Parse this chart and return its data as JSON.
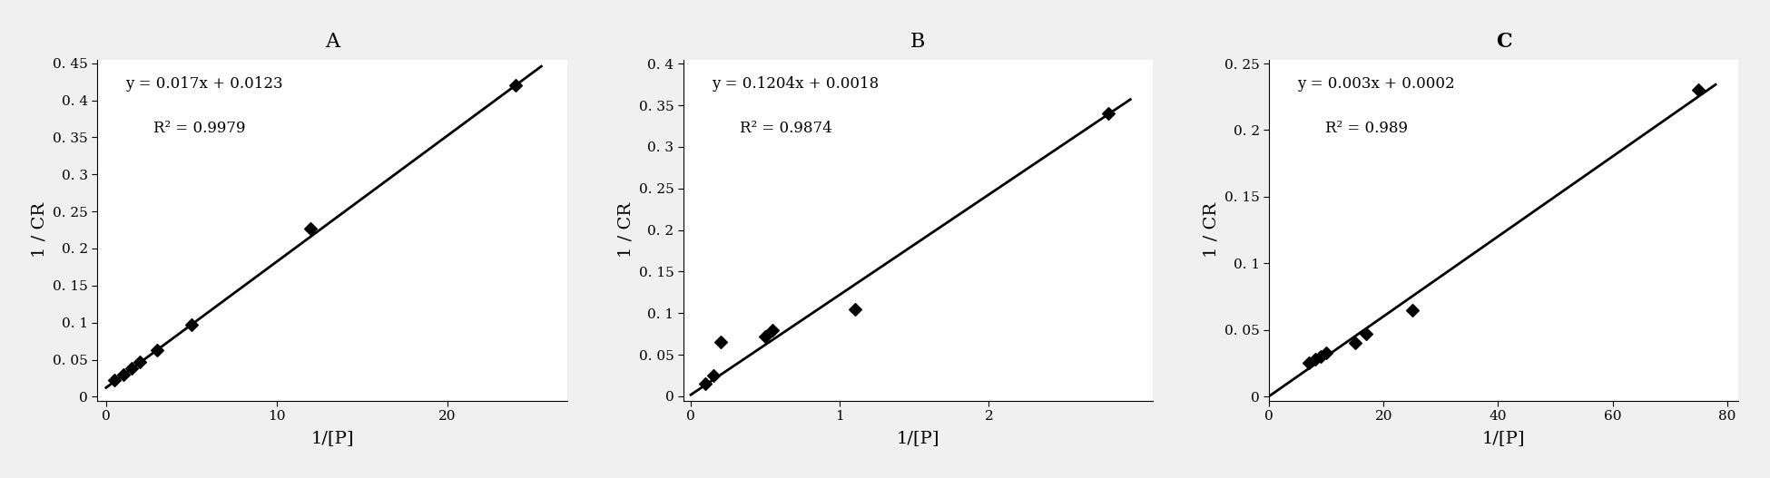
{
  "panels": [
    {
      "title": "A",
      "title_bold": false,
      "equation": "y = 0.017x + 0.0123",
      "r2": "R² = 0.9979",
      "slope": 0.017,
      "intercept": 0.0123,
      "data_x": [
        0.5,
        1.0,
        1.5,
        2.0,
        3.0,
        5.0,
        12.0,
        24.0
      ],
      "data_y": [
        0.022,
        0.03,
        0.038,
        0.047,
        0.063,
        0.097,
        0.227,
        0.42
      ],
      "xlim": [
        -0.5,
        27
      ],
      "ylim": [
        -0.005,
        0.455
      ],
      "xticks": [
        0,
        10,
        20
      ],
      "xtick_labels": [
        "0",
        "10",
        "20"
      ],
      "yticks": [
        0,
        0.05,
        0.1,
        0.15,
        0.2,
        0.25,
        0.3,
        0.35,
        0.4,
        0.45
      ],
      "ytick_labels": [
        "0",
        "0. 05",
        "0. 1",
        "0. 15",
        "0. 2",
        "0. 25",
        "0. 3",
        "0. 35",
        "0. 4",
        "0. 45"
      ],
      "xlabel": "1/[P]",
      "ylabel": "1 / CR",
      "line_x_start": 0,
      "line_x_end": 25.5
    },
    {
      "title": "B",
      "title_bold": false,
      "equation": "y = 0.1204x + 0.0018",
      "r2": "R² = 0.9874",
      "slope": 0.1204,
      "intercept": 0.0018,
      "data_x": [
        0.1,
        0.15,
        0.2,
        0.5,
        0.55,
        1.1,
        2.8
      ],
      "data_y": [
        0.015,
        0.025,
        0.065,
        0.072,
        0.08,
        0.105,
        0.34
      ],
      "xlim": [
        -0.05,
        3.1
      ],
      "ylim": [
        -0.005,
        0.405
      ],
      "xticks": [
        0,
        1,
        2
      ],
      "xtick_labels": [
        "0",
        "1",
        "2"
      ],
      "yticks": [
        0,
        0.05,
        0.1,
        0.15,
        0.2,
        0.25,
        0.3,
        0.35,
        0.4
      ],
      "ytick_labels": [
        "0",
        "0. 05",
        "0. 1",
        "0. 15",
        "0. 2",
        "0. 25",
        "0. 3",
        "0. 35",
        "0. 4"
      ],
      "xlabel": "1/[P]",
      "ylabel": "1 / CR",
      "line_x_start": 0,
      "line_x_end": 2.95
    },
    {
      "title": "C",
      "title_bold": true,
      "equation": "y = 0.003x + 0.0002",
      "r2": "R² = 0.989",
      "slope": 0.003,
      "intercept": 0.0002,
      "data_x": [
        7.0,
        8.0,
        9.0,
        10.0,
        15.0,
        17.0,
        25.0,
        75.0
      ],
      "data_y": [
        0.025,
        0.028,
        0.03,
        0.033,
        0.04,
        0.047,
        0.065,
        0.23
      ],
      "xlim": [
        0,
        82
      ],
      "ylim": [
        -0.003,
        0.253
      ],
      "xticks": [
        0,
        20,
        40,
        60,
        80
      ],
      "xtick_labels": [
        "0",
        "20",
        "40",
        "60",
        "80"
      ],
      "yticks": [
        0,
        0.05,
        0.1,
        0.15,
        0.2,
        0.25
      ],
      "ytick_labels": [
        "0",
        "0. 05",
        "0. 1",
        "0. 15",
        "0. 2",
        "0. 25"
      ],
      "xlabel": "1/[P]",
      "ylabel": "1 / CR",
      "line_x_start": 0,
      "line_x_end": 78
    }
  ],
  "bg_color": "#f0f0f0",
  "plot_bg_color": "#ffffff",
  "text_color": "#000000",
  "marker_color": "#000000",
  "line_color": "#000000",
  "marker": "D",
  "marker_size": 7,
  "line_width": 2.0,
  "font_family": "serif",
  "tick_fontsize": 11,
  "label_fontsize": 14,
  "title_fontsize": 16,
  "eq_fontsize": 12
}
